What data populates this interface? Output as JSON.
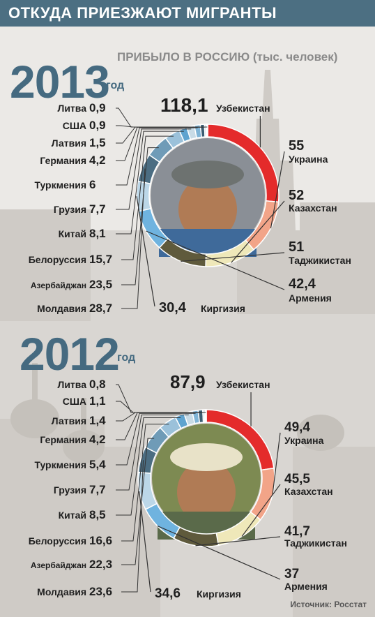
{
  "header": {
    "title": "ОТКУДА ПРИЕЗЖАЮТ МИГРАНТЫ"
  },
  "subtitle": "ПРИБЫЛО В РОССИЮ (тыс. человек)",
  "source": "Источник: Росстат",
  "colors": {
    "header_bg": "#4c6f82",
    "uzbekistan": "#e42b2b",
    "ukraine": "#f2a488",
    "kazakhstan": "#efe8b9",
    "tajikistan": "#5f5a3c",
    "armenia": "#6fb3df",
    "kyrgyzstan": "#bcd7e8",
    "moldova": "#4b6d82",
    "azerbaijan": "#6f9bb7",
    "belarus": "#9bc1da",
    "china": "#5fa3cf",
    "georgia": "#c8dbe6",
    "turkmenistan": "#7fb4d6",
    "germany": "#3a5d72",
    "latvia": "#a6c8df",
    "usa": "#5d7e92",
    "lithuania": "#d4e3ec"
  },
  "chart_data": [
    {
      "type": "donut",
      "year": "2013",
      "year_suffix": "год",
      "categories": [
        "Узбекистан",
        "Украина",
        "Казахстан",
        "Таджикистан",
        "Армения",
        "Киргизия",
        "Молдавия",
        "Азербайджан",
        "Белоруссия",
        "Китай",
        "Грузия",
        "Туркмения",
        "Германия",
        "Латвия",
        "США",
        "Литва"
      ],
      "labels": [
        "118,1",
        "55",
        "52",
        "51",
        "42,4",
        "30,4",
        "28,7",
        "23,5",
        "15,7",
        "8,1",
        "7,7",
        "6",
        "4,2",
        "1,5",
        "0,9",
        "0,9"
      ],
      "values": [
        118.1,
        55,
        52,
        51,
        42.4,
        30.4,
        28.7,
        23.5,
        15.7,
        8.1,
        7.7,
        6,
        4.2,
        1.5,
        0.9,
        0.9
      ]
    },
    {
      "type": "donut",
      "year": "2012",
      "year_suffix": "год",
      "categories": [
        "Узбекистан",
        "Украина",
        "Казахстан",
        "Таджикистан",
        "Армения",
        "Киргизия",
        "Молдавия",
        "Азербайджан",
        "Белоруссия",
        "Китай",
        "Грузия",
        "Туркмения",
        "Германия",
        "Латвия",
        "США",
        "Литва"
      ],
      "labels": [
        "87,9",
        "49,4",
        "45,5",
        "41,7",
        "37",
        "34,6",
        "23,6",
        "22,3",
        "16,6",
        "8,5",
        "7,7",
        "5,4",
        "4,2",
        "1,4",
        "1,1",
        "0,8"
      ],
      "values": [
        87.9,
        49.4,
        45.5,
        41.7,
        37,
        34.6,
        23.6,
        22.3,
        16.6,
        8.5,
        7.7,
        5.4,
        4.2,
        1.4,
        1.1,
        0.8
      ]
    }
  ]
}
